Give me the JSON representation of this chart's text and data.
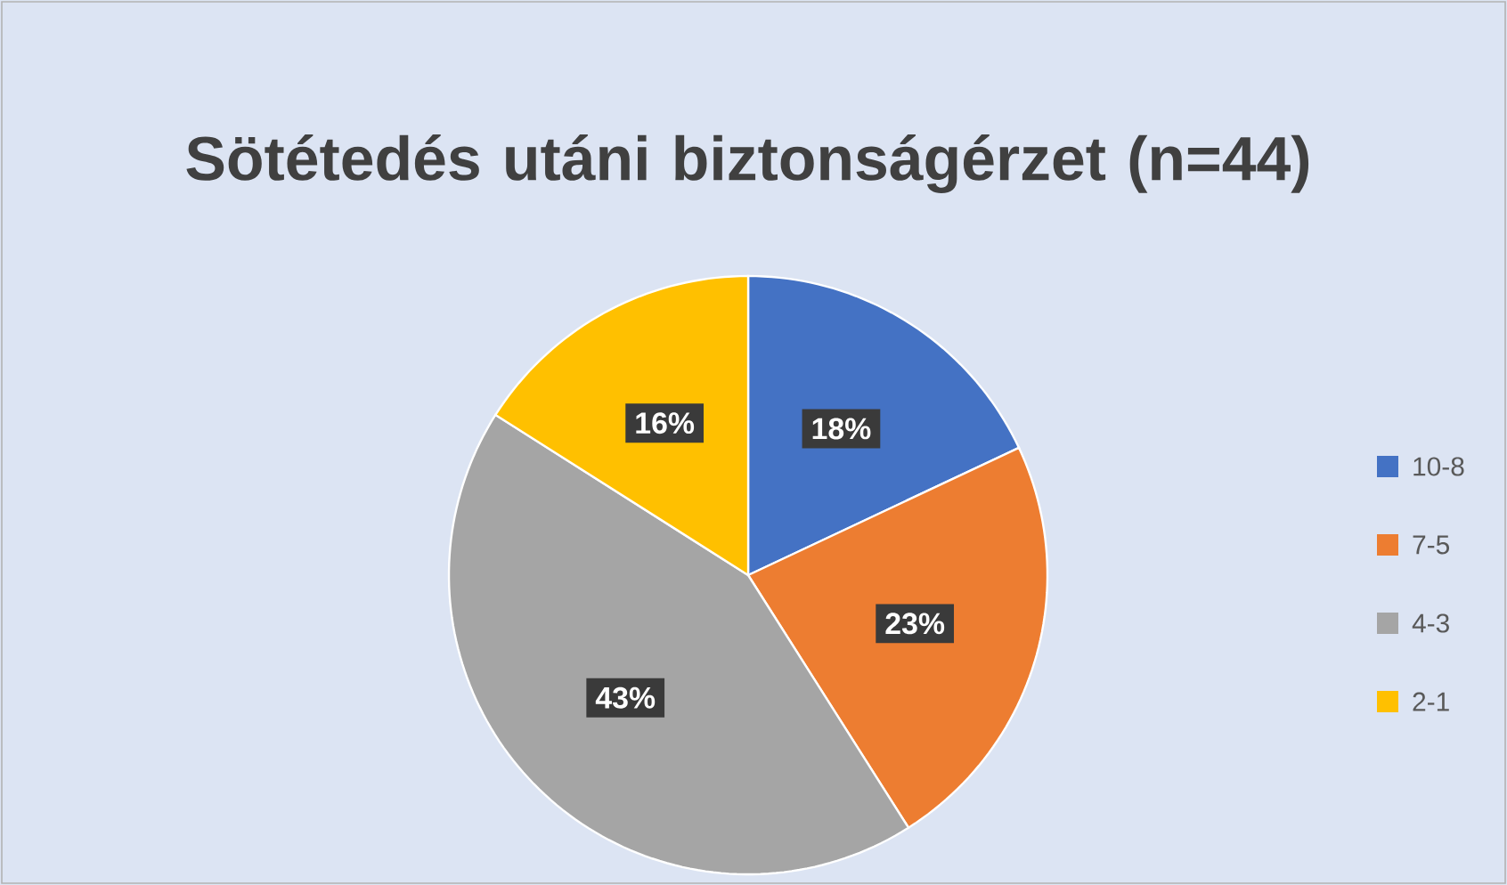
{
  "chart_data": {
    "type": "pie",
    "title": "Sötétedés utáni biztonságérzet (n=44)",
    "categories": [
      "10-8",
      "7-5",
      "4-3",
      "2-1"
    ],
    "values": [
      18,
      23,
      43,
      16
    ],
    "value_labels": [
      "18%",
      "23%",
      "43%",
      "16%"
    ],
    "colors": [
      "#4472c4",
      "#ed7d31",
      "#a5a5a5",
      "#ffc000"
    ],
    "legend": "right"
  }
}
